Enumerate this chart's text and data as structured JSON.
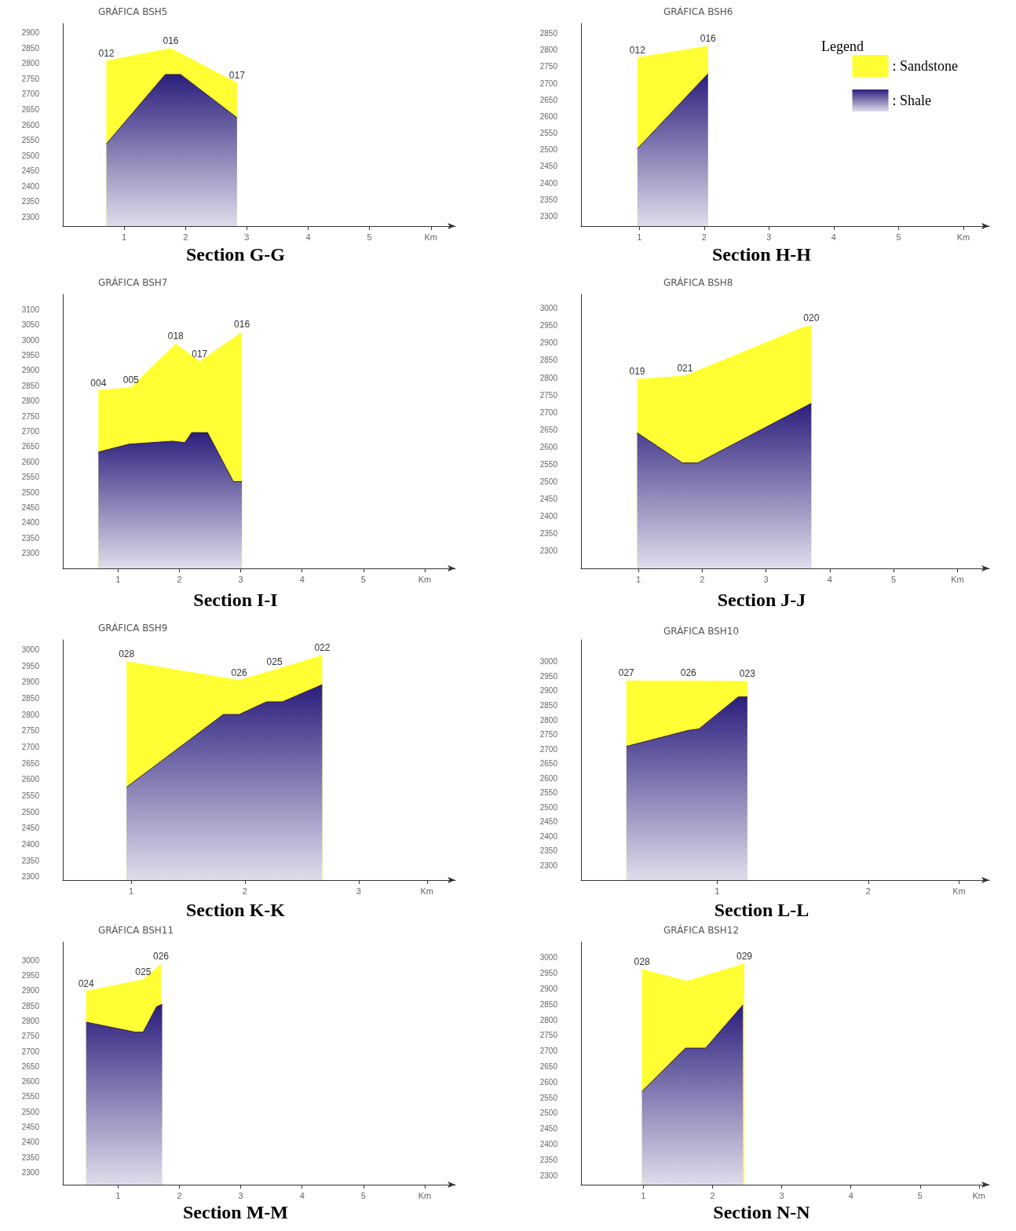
{
  "chart_data": [
    {
      "type": "area",
      "title": "GRÁFICA BSH5",
      "subtitle": "Section G-G",
      "xlim": [
        0,
        6.4
      ],
      "xticks": [
        1,
        2,
        3,
        4,
        5,
        {
          "value": 6,
          "label": "Km"
        }
      ],
      "ylim": [
        2270,
        2930
      ],
      "yticks": [
        2300,
        2350,
        2400,
        2450,
        2500,
        2550,
        2600,
        2650,
        2700,
        2750,
        2800,
        2850,
        2900
      ],
      "marker": "none",
      "grid": false,
      "legend": false,
      "series": [
        {
          "color": "#ffff33",
          "x": [
            0.71,
            1.76,
            2.84
          ],
          "values": [
            2808,
            2849,
            2736
          ]
        },
        {
          "color": "#2b1e7c",
          "x": [
            0.71,
            1.67,
            1.92,
            2.84
          ],
          "values": [
            2538,
            2764,
            2764,
            2623
          ]
        }
      ],
      "annotations": [
        {
          "text": "012",
          "x": 0.71,
          "y": 2808
        },
        {
          "text": "016",
          "x": 1.76,
          "y": 2849
        },
        {
          "text": "017",
          "x": 2.84,
          "y": 2736
        }
      ]
    },
    {
      "type": "area",
      "title": "GRÁFICA BSH6",
      "subtitle": "Section H-H",
      "xlim": [
        0.1,
        6.4
      ],
      "xticks": [
        1,
        2,
        3,
        4,
        5,
        {
          "value": 6,
          "label": "Km"
        }
      ],
      "ylim": [
        2270,
        2880
      ],
      "yticks": [
        2300,
        2350,
        2400,
        2450,
        2500,
        2550,
        2600,
        2650,
        2700,
        2750,
        2800,
        2850
      ],
      "marker": "none",
      "grid": false,
      "legend": "top right",
      "legend_title": "Legend",
      "series": [
        {
          "name": ": Sandstone",
          "color": "#ffff33",
          "x": [
            0.97,
            2.06
          ],
          "values": [
            2777,
            2812
          ]
        },
        {
          "name": ": Shale",
          "color": "#2b1e7c",
          "x": [
            0.97,
            2.06
          ],
          "values": [
            2503,
            2729
          ]
        }
      ],
      "annotations": [
        {
          "text": "012",
          "x": 0.97,
          "y": 2777
        },
        {
          "text": "016",
          "x": 2.06,
          "y": 2812
        }
      ]
    },
    {
      "type": "area",
      "title": "GRÁFICA BSH7",
      "subtitle": "Section I-I",
      "xlim": [
        0.1,
        6.5
      ],
      "xticks": [
        1,
        2,
        3,
        4,
        5,
        {
          "value": 6,
          "label": "Km"
        }
      ],
      "ylim": [
        2250,
        3150
      ],
      "yticks": [
        2300,
        2350,
        2400,
        2450,
        2500,
        2550,
        2600,
        2650,
        2700,
        2750,
        2800,
        2850,
        2900,
        2950,
        3000,
        3050,
        3100
      ],
      "marker": "none",
      "grid": false,
      "legend": false,
      "series": [
        {
          "color": "#ffff33",
          "x": [
            0.68,
            1.21,
            1.94,
            2.33,
            3.02
          ],
          "values": [
            2834,
            2844,
            2987,
            2929,
            3026
          ]
        },
        {
          "color": "#2b1e7c",
          "x": [
            0.68,
            1.18,
            1.89,
            2.09,
            2.2,
            2.46,
            2.88,
            3.02
          ],
          "values": [
            2632,
            2658,
            2668,
            2663,
            2696,
            2696,
            2535,
            2535
          ]
        }
      ],
      "annotations": [
        {
          "text": "004",
          "x": 0.68,
          "y": 2834
        },
        {
          "text": "005",
          "x": 1.21,
          "y": 2844
        },
        {
          "text": "018",
          "x": 1.94,
          "y": 2987
        },
        {
          "text": "017",
          "x": 2.33,
          "y": 2929
        },
        {
          "text": "016",
          "x": 3.02,
          "y": 3026
        }
      ]
    },
    {
      "type": "area",
      "title": "GRÁFICA BSH8",
      "subtitle": "Section J-J",
      "xlim": [
        0.1,
        6.5
      ],
      "xticks": [
        1,
        2,
        3,
        4,
        5,
        {
          "value": 6,
          "label": "Km"
        }
      ],
      "ylim": [
        2250,
        3040
      ],
      "yticks": [
        2300,
        2350,
        2400,
        2450,
        2500,
        2550,
        2600,
        2650,
        2700,
        2750,
        2800,
        2850,
        2900,
        2950,
        3000
      ],
      "marker": "none",
      "grid": false,
      "legend": false,
      "series": [
        {
          "color": "#ffff33",
          "x": [
            0.98,
            1.73,
            3.57,
            3.71
          ],
          "values": [
            2795,
            2805,
            2944,
            2949
          ]
        },
        {
          "color": "#2b1e7c",
          "x": [
            0.98,
            1.69,
            1.93,
            3.71
          ],
          "values": [
            2641,
            2554,
            2554,
            2726
          ]
        }
      ],
      "annotations": [
        {
          "text": "019",
          "x": 0.98,
          "y": 2795
        },
        {
          "text": "021",
          "x": 1.73,
          "y": 2805
        },
        {
          "text": "020",
          "x": 3.71,
          "y": 2949
        }
      ]
    },
    {
      "type": "area",
      "title": "GRÁFICA BSH9",
      "subtitle": "Section K-K",
      "xlim": [
        0.4,
        3.85
      ],
      "xticks": [
        1,
        2,
        3,
        {
          "value": 3.6,
          "label": "Km"
        }
      ],
      "ylim": [
        2290,
        3030
      ],
      "yticks": [
        2300,
        2350,
        2400,
        2450,
        2500,
        2550,
        2600,
        2650,
        2700,
        2750,
        2800,
        2850,
        2900,
        2950,
        3000
      ],
      "marker": "none",
      "grid": false,
      "legend": false,
      "series": [
        {
          "color": "#ffff33",
          "x": [
            0.96,
            1.95,
            2.26,
            2.68
          ],
          "values": [
            2963,
            2905,
            2937,
            2982
          ]
        },
        {
          "color": "#2b1e7c",
          "x": [
            0.96,
            1.81,
            1.95,
            2.19,
            2.33,
            2.68
          ],
          "values": [
            2576,
            2800,
            2800,
            2839,
            2839,
            2892
          ]
        }
      ],
      "annotations": [
        {
          "text": "028",
          "x": 0.96,
          "y": 2963
        },
        {
          "text": "026",
          "x": 1.95,
          "y": 2905
        },
        {
          "text": "025",
          "x": 2.26,
          "y": 2937
        },
        {
          "text": "022",
          "x": 2.68,
          "y": 2982
        }
      ]
    },
    {
      "type": "area",
      "title": "GRÁFICA BSH10",
      "subtitle": "Section L-L",
      "xlim": [
        0.1,
        2.8
      ],
      "xticks": [
        1,
        2,
        {
          "value": 2.6,
          "label": "Km"
        }
      ],
      "ylim": [
        2250,
        3075
      ],
      "yticks": [
        2300,
        2350,
        2400,
        2450,
        2500,
        2550,
        2600,
        2650,
        2700,
        2750,
        2800,
        2850,
        2900,
        2950,
        3000
      ],
      "marker": "none",
      "grid": false,
      "legend": false,
      "series": [
        {
          "color": "#ffff33",
          "x": [
            0.4,
            0.81,
            1.2
          ],
          "values": [
            2934,
            2934,
            2932
          ]
        },
        {
          "color": "#2b1e7c",
          "x": [
            0.4,
            0.81,
            0.88,
            1.14,
            1.2
          ],
          "values": [
            2709,
            2764,
            2769,
            2879,
            2879
          ]
        }
      ],
      "annotations": [
        {
          "text": "027",
          "x": 0.4,
          "y": 2934
        },
        {
          "text": "026",
          "x": 0.81,
          "y": 2934
        },
        {
          "text": "023",
          "x": 1.2,
          "y": 2932
        }
      ]
    },
    {
      "type": "area",
      "title": "GRÁFICA BSH11",
      "subtitle": "Section M-M",
      "xlim": [
        0.1,
        6.5
      ],
      "xticks": [
        1,
        2,
        3,
        4,
        5,
        {
          "value": 6,
          "label": "Km"
        }
      ],
      "ylim": [
        2260,
        3060
      ],
      "yticks": [
        2300,
        2350,
        2400,
        2450,
        2500,
        2550,
        2600,
        2650,
        2700,
        2750,
        2800,
        2850,
        2900,
        2950,
        3000
      ],
      "marker": "none",
      "grid": false,
      "legend": false,
      "series": [
        {
          "color": "#ffff33",
          "x": [
            0.48,
            1.41,
            1.7
          ],
          "values": [
            2898,
            2936,
            2987
          ]
        },
        {
          "color": "#2b1e7c",
          "x": [
            0.48,
            1.28,
            1.41,
            1.63,
            1.72
          ],
          "values": [
            2796,
            2763,
            2763,
            2847,
            2855
          ]
        }
      ],
      "annotations": [
        {
          "text": "024",
          "x": 0.48,
          "y": 2898
        },
        {
          "text": "025",
          "x": 1.41,
          "y": 2936
        },
        {
          "text": "026",
          "x": 1.7,
          "y": 2987
        }
      ]
    },
    {
      "type": "area",
      "title": "GRÁFICA BSH12",
      "subtitle": "Section N-N",
      "xlim": [
        0.1,
        6.0
      ],
      "xticks": [
        1,
        2,
        3,
        4,
        5,
        {
          "value": 5.85,
          "label": "Km"
        }
      ],
      "ylim": [
        2270,
        3050
      ],
      "yticks": [
        2300,
        2350,
        2400,
        2450,
        2500,
        2550,
        2600,
        2650,
        2700,
        2750,
        2800,
        2850,
        2900,
        2950,
        3000
      ],
      "marker": "none",
      "grid": false,
      "legend": false,
      "series": [
        {
          "color": "#ffff33",
          "x": [
            0.98,
            1.63,
            2.46
          ],
          "values": [
            2962,
            2924,
            2980
          ]
        },
        {
          "color": "#2b1e7c",
          "x": [
            0.98,
            1.61,
            1.9,
            2.44
          ],
          "values": [
            2570,
            2709,
            2709,
            2848
          ]
        }
      ],
      "annotations": [
        {
          "text": "028",
          "x": 0.98,
          "y": 2962
        },
        {
          "text": "029",
          "x": 2.46,
          "y": 2980
        }
      ]
    }
  ]
}
